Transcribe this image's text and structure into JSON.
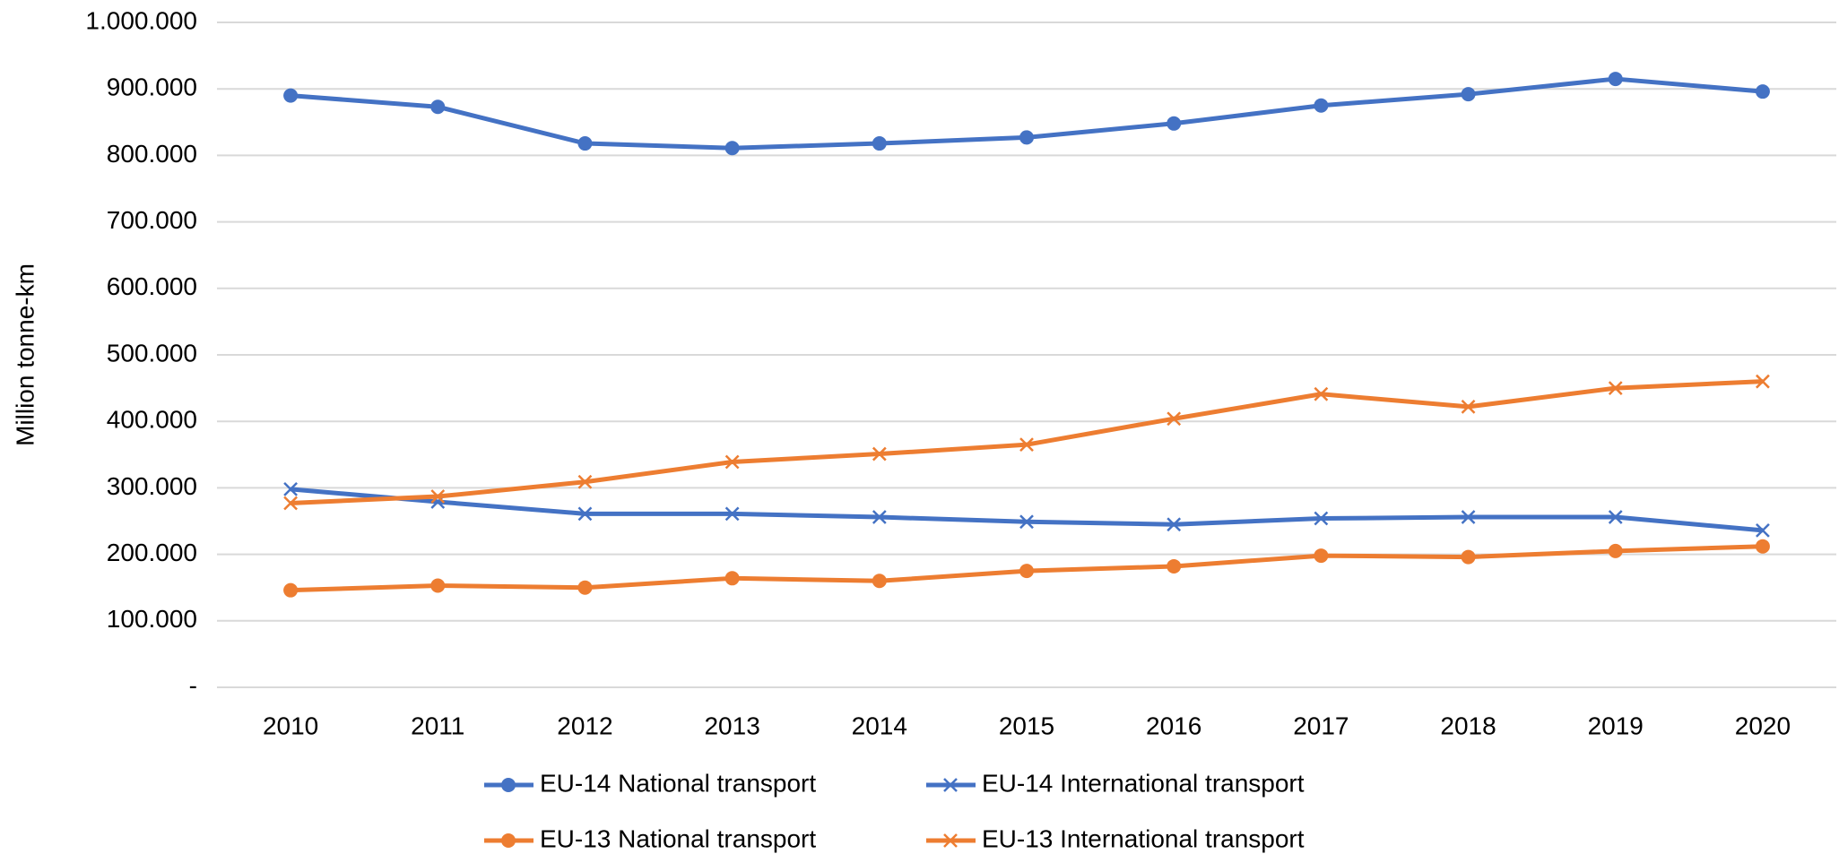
{
  "chart_data": {
    "type": "line",
    "y_label": "Million tonne-km",
    "categories": [
      "2010",
      "2011",
      "2012",
      "2013",
      "2014",
      "2015",
      "2016",
      "2017",
      "2018",
      "2019",
      "2020"
    ],
    "series": [
      {
        "name": "EU-14 National transport",
        "color": "#4472c4",
        "marker": "circle",
        "values": [
          890000,
          873000,
          818000,
          811000,
          818000,
          827000,
          848000,
          875000,
          892000,
          915000,
          896000
        ]
      },
      {
        "name": "EU-14 International transport",
        "color": "#4472c4",
        "marker": "x",
        "values": [
          298000,
          279000,
          261000,
          261000,
          256000,
          249000,
          245000,
          254000,
          256000,
          256000,
          236000
        ]
      },
      {
        "name": "EU-13 National transport",
        "color": "#ed7d31",
        "marker": "circle",
        "values": [
          146000,
          153000,
          150000,
          164000,
          160000,
          175000,
          182000,
          198000,
          196000,
          205000,
          212000
        ]
      },
      {
        "name": "EU-13 International transport",
        "color": "#ed7d31",
        "marker": "x",
        "values": [
          277000,
          287000,
          309000,
          339000,
          351000,
          365000,
          404000,
          441000,
          422000,
          450000,
          460000
        ]
      }
    ],
    "ylim": [
      0,
      1000000
    ],
    "yticks": [
      {
        "value": 0,
        "label": "-"
      },
      {
        "value": 100000,
        "label": "100.000"
      },
      {
        "value": 200000,
        "label": "200.000"
      },
      {
        "value": 300000,
        "label": "300.000"
      },
      {
        "value": 400000,
        "label": "400.000"
      },
      {
        "value": 500000,
        "label": "500.000"
      },
      {
        "value": 600000,
        "label": "600.000"
      },
      {
        "value": 700000,
        "label": "700.000"
      },
      {
        "value": 800000,
        "label": "800.000"
      },
      {
        "value": 900000,
        "label": "900.000"
      },
      {
        "value": 1000000,
        "label": "1.000.000"
      }
    ],
    "grid": true,
    "legend": "bottom"
  }
}
